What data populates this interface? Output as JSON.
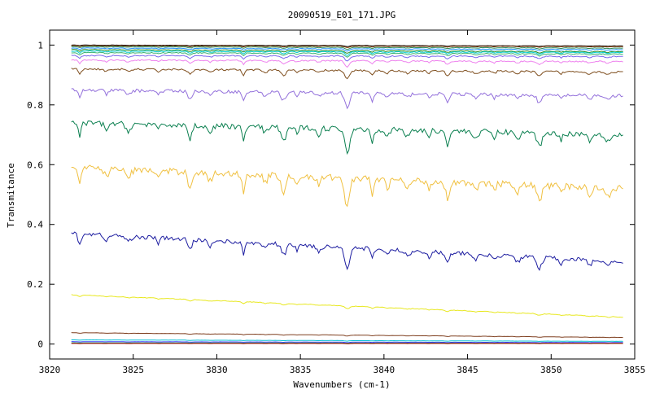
{
  "chart_data": {
    "type": "line",
    "title": "20090519_E01_171.JPG",
    "xlabel": "Wavenumbers (cm-1)",
    "ylabel": "Transmitance",
    "xlim": [
      3820,
      3855
    ],
    "ylim": [
      -0.05,
      1.05
    ],
    "x_range": [
      3821.3,
      3854.3
    ],
    "xticks": [
      3820,
      3825,
      3830,
      3835,
      3840,
      3845,
      3850,
      3855
    ],
    "yticks": [
      0,
      0.2,
      0.4,
      0.6,
      0.8,
      1
    ],
    "ytick_labels": [
      "0",
      "0.2",
      "0.4",
      "0.6",
      "0.8",
      "1"
    ],
    "grid": false,
    "legend": "none",
    "absorption_lines": [
      3821.8,
      3823.4,
      3824.7,
      3826.5,
      3828.4,
      3829.6,
      3831.6,
      3832.9,
      3834.0,
      3834.8,
      3836.1,
      3837.8,
      3839.3,
      3840.2,
      3841.4,
      3842.7,
      3843.8,
      3845.5,
      3846.6,
      3848.0,
      3849.3,
      3850.6,
      3852.3,
      3853.4
    ],
    "series": [
      {
        "start": 1.0,
        "end": 0.997,
        "depth": 0.002,
        "color": "#000000"
      },
      {
        "start": 0.998,
        "end": 0.995,
        "depth": 0.003,
        "color": "#8b4513"
      },
      {
        "start": 0.995,
        "end": 0.99,
        "depth": 0.004,
        "color": "#2e8b57"
      },
      {
        "start": 0.99,
        "end": 0.985,
        "depth": 0.005,
        "color": "#1e90ff"
      },
      {
        "start": 0.985,
        "end": 0.978,
        "depth": 0.006,
        "color": "#228b22"
      },
      {
        "start": 0.98,
        "end": 0.975,
        "depth": 0.007,
        "color": "#00ced1"
      },
      {
        "start": 0.975,
        "end": 0.97,
        "depth": 0.008,
        "color": "#3cb371"
      },
      {
        "start": 0.965,
        "end": 0.962,
        "depth": 0.01,
        "color": "#7b68ee"
      },
      {
        "start": 0.95,
        "end": 0.945,
        "depth": 0.012,
        "color": "#ee82ee"
      },
      {
        "start": 0.92,
        "end": 0.91,
        "depth": 0.018,
        "color": "#7f4f1f"
      },
      {
        "start": 0.85,
        "end": 0.83,
        "depth": 0.03,
        "color": "#9370db"
      },
      {
        "start": 0.74,
        "end": 0.7,
        "depth": 0.05,
        "color": "#0a7f4f"
      },
      {
        "start": 0.59,
        "end": 0.52,
        "depth": 0.06,
        "color": "#f0c040"
      },
      {
        "start": 0.37,
        "end": 0.275,
        "depth": 0.04,
        "color": "#1c1ca0"
      },
      {
        "start": 0.165,
        "end": 0.09,
        "depth": 0.006,
        "color": "#e8e820"
      },
      {
        "start": 0.038,
        "end": 0.022,
        "depth": 0.002,
        "color": "#7f3f1f"
      },
      {
        "start": 0.014,
        "end": 0.009,
        "depth": 0.001,
        "color": "#00bcd4"
      },
      {
        "start": 0.008,
        "end": 0.005,
        "depth": 0.001,
        "color": "#4040ff"
      },
      {
        "start": 0.004,
        "end": 0.003,
        "depth": 0.0005,
        "color": "#00a050"
      },
      {
        "start": 0.002,
        "end": 0.002,
        "depth": 0.0005,
        "color": "#c00000"
      }
    ]
  }
}
